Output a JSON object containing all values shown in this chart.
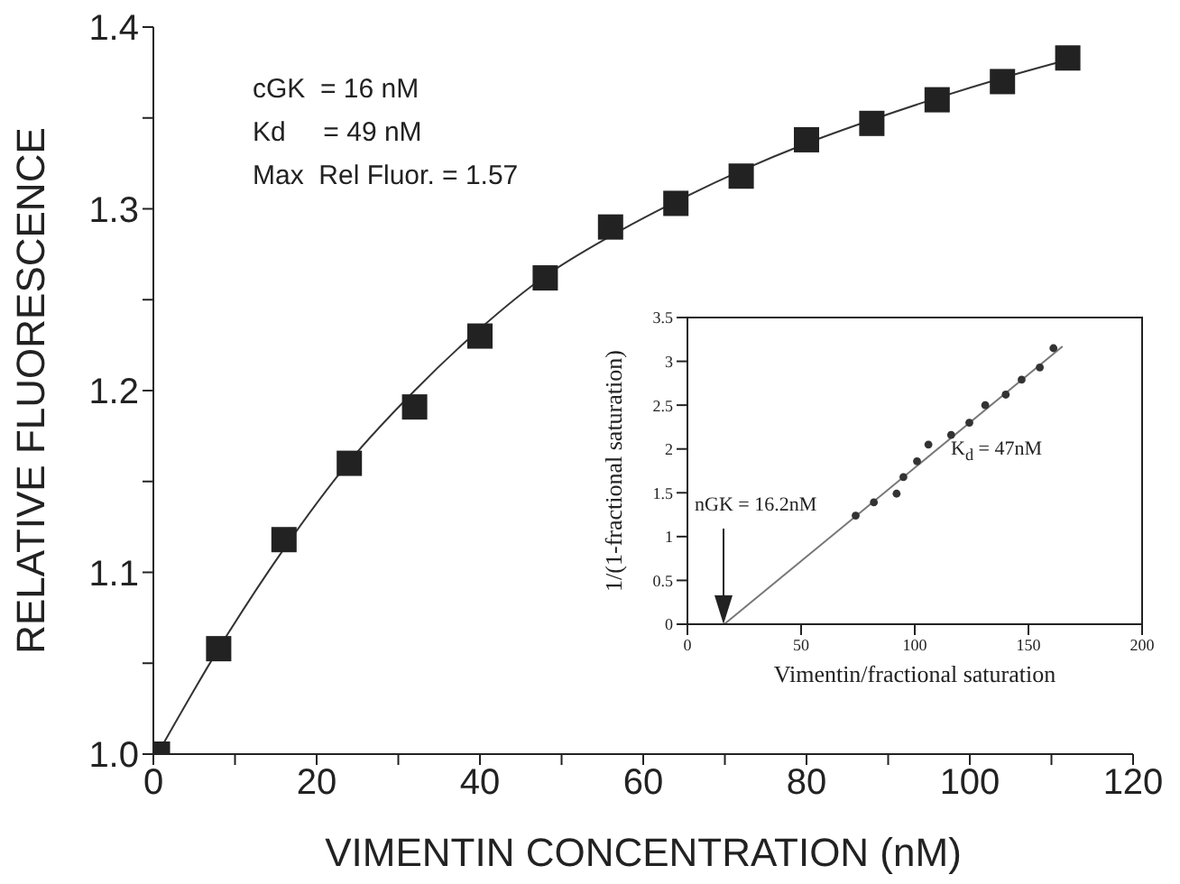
{
  "chart_data": [
    {
      "type": "scatter",
      "xlabel": "VIMENTIN CONCENTRATION (nM)",
      "ylabel": "RELATIVE FLUORESCENCE",
      "xlim": [
        0,
        120
      ],
      "xticks": [
        0,
        {
          "value": 10,
          "label": null
        },
        20,
        {
          "value": 30,
          "label": null
        },
        40,
        {
          "value": 50,
          "label": null
        },
        60,
        {
          "value": 70,
          "label": null
        },
        80,
        {
          "value": 90,
          "label": null
        },
        100,
        {
          "value": 110,
          "label": null
        },
        120
      ],
      "ylim": [
        1.0,
        1.4
      ],
      "yticks": [
        {
          "value": 1.0,
          "label": "1.0"
        },
        {
          "value": 1.05,
          "label": null
        },
        1.1,
        {
          "value": 1.15,
          "label": null
        },
        1.2,
        {
          "value": 1.25,
          "label": null
        },
        1.3,
        {
          "value": 1.35,
          "label": null
        },
        1.4
      ],
      "annotations": [
        "cGK  = 16 nM",
        "Kd     = 49 nM",
        "Max  Rel Fluor. = 1.57"
      ],
      "series": [
        {
          "marker": "square",
          "color": "#222222",
          "x": [
            0.5,
            8,
            16,
            24,
            32,
            40,
            48,
            56,
            64,
            72,
            80,
            88,
            96,
            104,
            112
          ],
          "values": [
            1.0,
            1.058,
            1.118,
            1.16,
            1.191,
            1.23,
            1.262,
            1.29,
            1.303,
            1.318,
            1.338,
            1.347,
            1.36,
            1.37,
            1.383
          ]
        },
        {
          "type": "line",
          "marker": "none",
          "color": "#333333",
          "x": [
            0.5,
            8,
            16,
            24,
            32,
            40,
            48,
            56,
            64,
            72,
            80,
            88,
            96,
            104,
            112
          ],
          "values": [
            1.0,
            1.058,
            1.113,
            1.161,
            1.2,
            1.234,
            1.263,
            1.285,
            1.304,
            1.321,
            1.336,
            1.349,
            1.361,
            1.372,
            1.382
          ]
        }
      ]
    },
    {
      "type": "scatter",
      "xlabel": "Vimentin/fractional saturation",
      "ylabel": "1/(1-fractional saturation)",
      "xlim": [
        0,
        200
      ],
      "xticks": [
        0,
        50,
        100,
        150,
        200
      ],
      "ylim": [
        0,
        3.5
      ],
      "yticks": [
        0,
        0.5,
        1,
        1.5,
        2,
        2.5,
        3,
        3.5
      ],
      "annotations": [
        "nGK = 16.2nM",
        "K$_{d}$ = 47nM"
      ],
      "series": [
        {
          "marker": "circle",
          "color": "#333333",
          "x": [
            74,
            82,
            92,
            95,
            101,
            106,
            116,
            124,
            131,
            140,
            147,
            155,
            161
          ],
          "values": [
            1.24,
            1.39,
            1.49,
            1.68,
            1.86,
            2.05,
            2.16,
            2.3,
            2.5,
            2.62,
            2.79,
            2.93,
            3.15
          ]
        },
        {
          "type": "line",
          "marker": "none",
          "color": "#777777",
          "x": [
            16.2,
            165
          ],
          "values": [
            0,
            3.17
          ]
        }
      ]
    }
  ]
}
